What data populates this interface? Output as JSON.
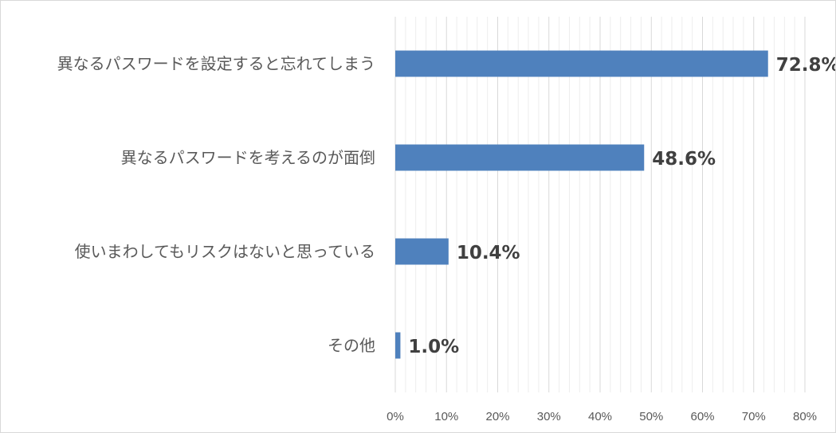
{
  "chart_data": {
    "type": "bar",
    "orientation": "horizontal",
    "categories": [
      "異なるパスワードを設定すると忘れてしまう",
      "異なるパスワードを考えるのが面倒",
      "使いまわしてもリスクはないと思っている",
      "その他"
    ],
    "values": [
      72.8,
      48.6,
      10.4,
      1.0
    ],
    "data_labels": [
      "72.8%",
      "48.6%",
      "10.4%",
      "1.0%"
    ],
    "x_ticks": [
      "0%",
      "10%",
      "20%",
      "30%",
      "40%",
      "50%",
      "60%",
      "70%",
      "80%"
    ],
    "xlim": [
      0,
      80
    ],
    "major_step": 10,
    "minor_step": 2,
    "grid": true,
    "legend": "none",
    "bar_color": "#4f81bd",
    "major_grid_color": "#d9d9d9",
    "minor_grid_color": "#ededed"
  }
}
